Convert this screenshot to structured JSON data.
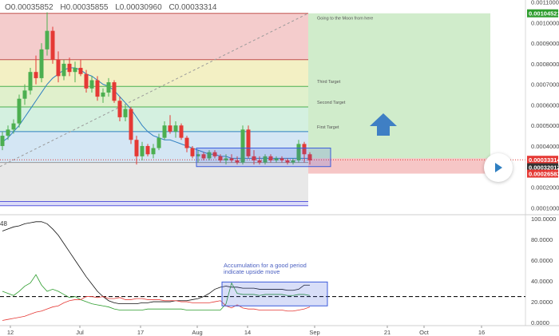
{
  "header": {
    "open": "O0.00035852",
    "high": "H0.00035855",
    "low": "L0.00030960",
    "close": "C0.00033314"
  },
  "indicator_label": "48",
  "colors": {
    "candle_up": "#4caf50",
    "candle_down": "#e53935",
    "ma_line": "#2f7fc1",
    "price_tag_green": "#2e9d2e",
    "price_tag_red": "#e53935",
    "price_tag_dark": "#333333",
    "arrow_blue": "#3f7fc4"
  },
  "chart_data": [
    {
      "type": "line",
      "price_axis": [
        "0.00110000",
        "0.00100000",
        "0.00090000",
        "0.00080000",
        "0.00070000",
        "0.00060000",
        "0.00050000",
        "0.00040000",
        "0.00030000",
        "0.00020000",
        "0.00010000"
      ],
      "price_axis_values": [
        0.0011,
        0.001,
        0.0009,
        0.0008,
        0.0007,
        0.0006,
        0.0005,
        0.0004,
        0.0003,
        0.0002,
        0.0001
      ],
      "ylim": [
        7e-05,
        0.00111
      ],
      "time_axis": [
        "12",
        "Jul",
        "17",
        "Aug",
        "14",
        "Sep",
        "21",
        "Oct",
        "16"
      ],
      "price_tags": [
        {
          "label": "0.00104521",
          "value": 0.00104521,
          "color": "#2e9d2e"
        },
        {
          "label": "0.00033314",
          "value": 0.00033314,
          "color": "#e53935"
        },
        {
          "label": "0.00032012",
          "value": 0.00032012,
          "color": "#333333"
        },
        {
          "label": "0.00026583",
          "value": 0.00026583,
          "color": "#e53935"
        }
      ],
      "fib_levels": [
        {
          "value": 0.00104521,
          "fill": "#f4cccc",
          "line": "#c0504d"
        },
        {
          "value": 0.00082,
          "fill": "#f3f0c4",
          "line": "#c0504d"
        },
        {
          "value": 0.00069,
          "fill": "#e0f0cc",
          "line": "#4caf50"
        },
        {
          "value": 0.00059,
          "fill": "#d4f0e0",
          "line": "#4caf50"
        },
        {
          "value": 0.00047,
          "fill": "#d4e6f4",
          "line": "#2f7fc1"
        },
        {
          "value": 0.00032,
          "fill": "#e8e8e8",
          "line": "#999999"
        },
        {
          "value": 0.00013,
          "fill": "#dcdcf8",
          "line": "#5a5adc"
        }
      ],
      "targets": [
        {
          "label": "Going to the Moon from here",
          "value": 0.00104521
        },
        {
          "label": "Third Target",
          "value": 0.00069
        },
        {
          "label": "Second Target",
          "value": 0.00059
        },
        {
          "label": "First Target",
          "value": 0.00047
        }
      ],
      "position_box": {
        "entry": 0.00034,
        "target": 0.00104521,
        "stop": 0.00026583
      },
      "accumulation_box_price": [
        0.0003,
        0.00039
      ],
      "candles": [
        {
          "o": 0.0004,
          "h": 0.00047,
          "l": 0.00038,
          "c": 0.00045
        },
        {
          "o": 0.00045,
          "h": 0.0005,
          "l": 0.00043,
          "c": 0.00048
        },
        {
          "o": 0.00048,
          "h": 0.00053,
          "l": 0.00046,
          "c": 0.00051
        },
        {
          "o": 0.00051,
          "h": 0.00065,
          "l": 0.00049,
          "c": 0.00063
        },
        {
          "o": 0.00063,
          "h": 0.0007,
          "l": 0.0006,
          "c": 0.00067
        },
        {
          "o": 0.00067,
          "h": 0.00078,
          "l": 0.00065,
          "c": 0.00076
        },
        {
          "o": 0.00076,
          "h": 0.00084,
          "l": 0.0007,
          "c": 0.00073
        },
        {
          "o": 0.00073,
          "h": 0.0009,
          "l": 0.00071,
          "c": 0.00087
        },
        {
          "o": 0.00087,
          "h": 0.00105,
          "l": 0.00084,
          "c": 0.00096
        },
        {
          "o": 0.00096,
          "h": 0.00098,
          "l": 0.0008,
          "c": 0.00082
        },
        {
          "o": 0.00082,
          "h": 0.00086,
          "l": 0.00071,
          "c": 0.00074
        },
        {
          "o": 0.00074,
          "h": 0.00082,
          "l": 0.00072,
          "c": 0.0008
        },
        {
          "o": 0.0008,
          "h": 0.00083,
          "l": 0.00074,
          "c": 0.00076
        },
        {
          "o": 0.00076,
          "h": 0.00081,
          "l": 0.00071,
          "c": 0.00078
        },
        {
          "o": 0.00078,
          "h": 0.00082,
          "l": 0.00074,
          "c": 0.00075
        },
        {
          "o": 0.00075,
          "h": 0.00077,
          "l": 0.00066,
          "c": 0.00068
        },
        {
          "o": 0.00068,
          "h": 0.00074,
          "l": 0.00066,
          "c": 0.00072
        },
        {
          "o": 0.00072,
          "h": 0.00074,
          "l": 0.00062,
          "c": 0.00064
        },
        {
          "o": 0.00064,
          "h": 0.00068,
          "l": 0.00061,
          "c": 0.00066
        },
        {
          "o": 0.00066,
          "h": 0.00073,
          "l": 0.00064,
          "c": 0.00071
        },
        {
          "o": 0.00071,
          "h": 0.00072,
          "l": 0.00061,
          "c": 0.00062
        },
        {
          "o": 0.00062,
          "h": 0.00064,
          "l": 0.00052,
          "c": 0.00054
        },
        {
          "o": 0.00054,
          "h": 0.0006,
          "l": 0.00052,
          "c": 0.00058
        },
        {
          "o": 0.00058,
          "h": 0.00059,
          "l": 0.00041,
          "c": 0.00043
        },
        {
          "o": 0.00043,
          "h": 0.00045,
          "l": 0.00031,
          "c": 0.00035
        },
        {
          "o": 0.00035,
          "h": 0.00042,
          "l": 0.00033,
          "c": 0.0004
        },
        {
          "o": 0.0004,
          "h": 0.00041,
          "l": 0.00035,
          "c": 0.00036
        },
        {
          "o": 0.00036,
          "h": 0.00041,
          "l": 0.00034,
          "c": 0.00039
        },
        {
          "o": 0.00039,
          "h": 0.00046,
          "l": 0.00038,
          "c": 0.00044
        },
        {
          "o": 0.00044,
          "h": 0.00052,
          "l": 0.00043,
          "c": 0.0005
        },
        {
          "o": 0.0005,
          "h": 0.00055,
          "l": 0.00046,
          "c": 0.00047
        },
        {
          "o": 0.00047,
          "h": 0.00052,
          "l": 0.00044,
          "c": 0.0005
        },
        {
          "o": 0.0005,
          "h": 0.00051,
          "l": 0.00043,
          "c": 0.00044
        },
        {
          "o": 0.00044,
          "h": 0.00045,
          "l": 0.00037,
          "c": 0.00039
        },
        {
          "o": 0.00039,
          "h": 0.0004,
          "l": 0.00034,
          "c": 0.00035
        },
        {
          "o": 0.00035,
          "h": 0.00038,
          "l": 0.00032,
          "c": 0.00036
        },
        {
          "o": 0.00036,
          "h": 0.00037,
          "l": 0.00033,
          "c": 0.00034
        },
        {
          "o": 0.00034,
          "h": 0.00038,
          "l": 0.00033,
          "c": 0.00037
        },
        {
          "o": 0.00037,
          "h": 0.00038,
          "l": 0.00034,
          "c": 0.00035
        },
        {
          "o": 0.00035,
          "h": 0.00036,
          "l": 0.00032,
          "c": 0.00033
        },
        {
          "o": 0.00033,
          "h": 0.00036,
          "l": 0.00031,
          "c": 0.00034
        },
        {
          "o": 0.00034,
          "h": 0.00036,
          "l": 0.00032,
          "c": 0.00033
        },
        {
          "o": 0.00033,
          "h": 0.00035,
          "l": 0.00031,
          "c": 0.00032
        },
        {
          "o": 0.00032,
          "h": 0.0005,
          "l": 0.00031,
          "c": 0.00048
        },
        {
          "o": 0.00048,
          "h": 0.0005,
          "l": 0.00034,
          "c": 0.00035
        },
        {
          "o": 0.00035,
          "h": 0.00038,
          "l": 0.00031,
          "c": 0.00033
        },
        {
          "o": 0.00033,
          "h": 0.00035,
          "l": 0.00031,
          "c": 0.00032
        },
        {
          "o": 0.00032,
          "h": 0.00036,
          "l": 0.00031,
          "c": 0.00035
        },
        {
          "o": 0.00035,
          "h": 0.00036,
          "l": 0.00032,
          "c": 0.00033
        },
        {
          "o": 0.00033,
          "h": 0.00035,
          "l": 0.00032,
          "c": 0.00034
        },
        {
          "o": 0.00034,
          "h": 0.00035,
          "l": 0.00032,
          "c": 0.00033
        },
        {
          "o": 0.00033,
          "h": 0.00034,
          "l": 0.00031,
          "c": 0.00032
        },
        {
          "o": 0.00032,
          "h": 0.00034,
          "l": 0.00031,
          "c": 0.00033
        },
        {
          "o": 0.00033,
          "h": 0.00043,
          "l": 0.00032,
          "c": 0.00041
        },
        {
          "o": 0.00041,
          "h": 0.00042,
          "l": 0.00032,
          "c": 0.00036
        },
        {
          "o": 0.00036,
          "h": 0.00037,
          "l": 0.00031,
          "c": 0.00033
        }
      ],
      "ma": [
        0.00042,
        0.00044,
        0.00047,
        0.0005,
        0.00054,
        0.00058,
        0.00062,
        0.00066,
        0.0007,
        0.00073,
        0.00075,
        0.00077,
        0.00078,
        0.00078,
        0.00077,
        0.00075,
        0.00074,
        0.00072,
        0.0007,
        0.00069,
        0.00067,
        0.00064,
        0.00061,
        0.00058,
        0.00054,
        0.0005,
        0.00047,
        0.00045,
        0.00044,
        0.00043,
        0.00043,
        0.00042,
        0.00041,
        0.0004,
        0.00039,
        0.00038,
        0.00037,
        0.00036,
        0.00036,
        0.00035,
        0.00035,
        0.00034,
        0.00034,
        0.00034,
        0.00034,
        0.00034,
        0.00034,
        0.00034,
        0.00034,
        0.00034,
        0.00034,
        0.00034,
        0.00034,
        0.00034,
        0.00034,
        0.00034
      ]
    },
    {
      "type": "line",
      "yaxis": [
        "100.0000",
        "80.0000",
        "60.0000",
        "40.0000",
        "20.0000",
        "0.0000"
      ],
      "yaxis_values": [
        100,
        80,
        60,
        40,
        20,
        0
      ],
      "ylim": [
        -3,
        103
      ],
      "dashed_level": 25,
      "annotation": "Accumulation for a good period indicate upside move",
      "accumulation_box": [
        16,
        39
      ],
      "series": [
        {
          "color": "#111111",
          "values": [
            88,
            90,
            92,
            93,
            95,
            96,
            97,
            97,
            95,
            90,
            84,
            76,
            68,
            60,
            52,
            44,
            37,
            30,
            25,
            21,
            19,
            18,
            18,
            18,
            18,
            19,
            19,
            20,
            20,
            20,
            20,
            21,
            21,
            21,
            22,
            23,
            25,
            28,
            32,
            34,
            35,
            34,
            34,
            33,
            33,
            33,
            32,
            32,
            32,
            32,
            32,
            31,
            31,
            32,
            36,
            36
          ]
        },
        {
          "color": "#2e9d2e",
          "values": [
            30,
            28,
            26,
            30,
            35,
            38,
            46,
            36,
            30,
            32,
            30,
            27,
            24,
            25,
            22,
            20,
            18,
            17,
            16,
            15,
            13,
            12,
            12,
            12,
            12,
            12,
            13,
            13,
            13,
            13,
            13,
            13,
            13,
            12,
            12,
            12,
            12,
            12,
            12,
            12,
            18,
            38,
            28,
            27,
            27,
            27,
            26,
            27,
            27,
            27,
            27,
            26,
            26,
            27,
            27,
            26
          ]
        },
        {
          "color": "#e53935",
          "values": [
            2,
            3,
            4,
            5,
            6,
            8,
            10,
            11,
            13,
            15,
            16,
            19,
            21,
            22,
            22,
            25,
            25,
            24,
            25,
            23,
            23,
            24,
            22,
            22,
            23,
            23,
            22,
            22,
            22,
            21,
            21,
            21,
            20,
            20,
            19,
            19,
            19,
            19,
            20,
            21,
            16,
            14,
            17,
            14,
            13,
            13,
            12,
            12,
            12,
            12,
            12,
            11,
            11,
            12,
            13,
            15
          ]
        }
      ]
    }
  ]
}
